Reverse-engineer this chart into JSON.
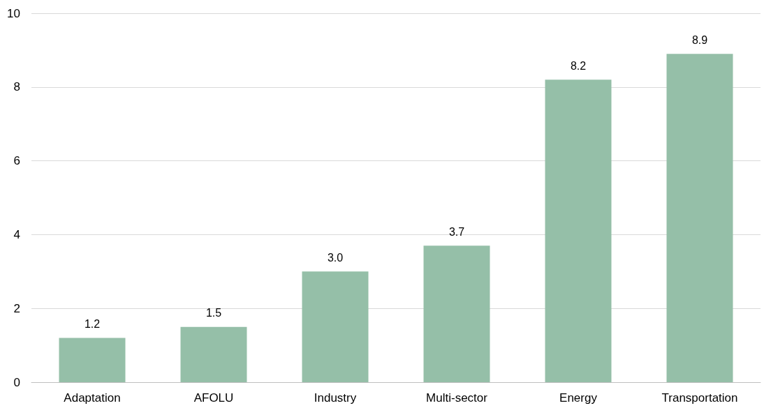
{
  "chart_data": {
    "type": "bar",
    "categories": [
      "Adaptation",
      "AFOLU",
      "Industry",
      "Multi-sector",
      "Energy",
      "Transportation"
    ],
    "values": [
      1.2,
      1.5,
      3.0,
      3.7,
      8.2,
      8.9
    ],
    "value_labels": [
      "1.2",
      "1.5",
      "3.0",
      "3.7",
      "8.2",
      "8.9"
    ],
    "color": "#95bfa8",
    "ylim": [
      0,
      10
    ],
    "yticks": [
      0,
      2,
      4,
      6,
      8,
      10
    ],
    "grid": "y"
  }
}
